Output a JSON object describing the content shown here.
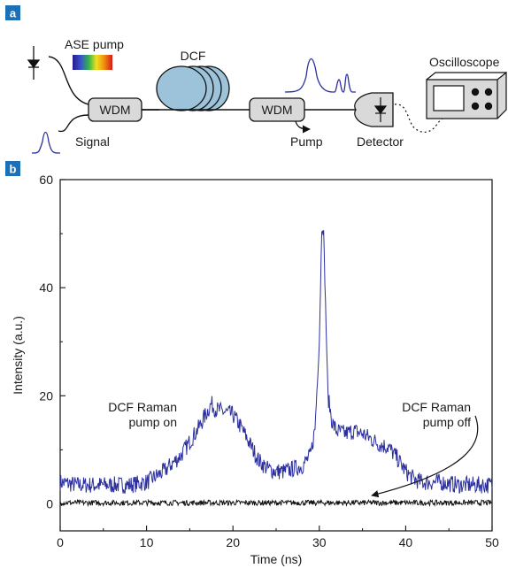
{
  "panel_a": {
    "badge": "a",
    "labels": {
      "ase_pump": "ASE pump",
      "dcf": "DCF",
      "wdm_in": "WDM",
      "wdm_out": "WDM",
      "signal": "Signal",
      "pump": "Pump",
      "detector": "Detector",
      "oscilloscope": "Oscilloscope"
    }
  },
  "panel_b": {
    "badge": "b",
    "annotations": {
      "pump_on_line1": "DCF Raman",
      "pump_on_line2": "pump on",
      "pump_off_line1": "DCF Raman",
      "pump_off_line2": "pump off"
    }
  },
  "colors": {
    "badge": "#1d6fb8",
    "trace_on": "#2b2f9e",
    "trace_off": "#111111",
    "component_fill": "#d9d9d9",
    "dcf_fill": "#9cc3d9"
  },
  "chart_data": {
    "type": "line",
    "xlabel": "Time (ns)",
    "ylabel": "Intensity (a.u.)",
    "xlim": [
      0,
      50
    ],
    "ylim": [
      -5,
      60
    ],
    "xticks": [
      0,
      10,
      20,
      30,
      40,
      50
    ],
    "yticks": [
      0,
      20,
      40,
      60
    ],
    "grid": false,
    "series": [
      {
        "x": [
          0,
          2,
          4,
          6,
          8,
          10,
          12,
          14,
          15,
          16,
          17,
          17.5,
          18,
          19,
          20,
          21,
          22,
          23,
          24,
          25,
          26,
          27,
          28,
          29,
          29.5,
          30,
          30.3,
          30.5,
          30.8,
          31,
          31.5,
          32,
          33,
          34,
          35,
          36,
          37,
          38,
          39,
          40,
          41,
          42,
          44,
          46,
          48,
          50
        ],
        "values": [
          4,
          3.5,
          3.5,
          3.5,
          3.5,
          4,
          6,
          9,
          11.5,
          14,
          17,
          18.5,
          17.5,
          17,
          16.5,
          14,
          11,
          8,
          6.5,
          6,
          6,
          6.5,
          7,
          9,
          14,
          30,
          52,
          50,
          32,
          20,
          15,
          13.5,
          13,
          13.5,
          13,
          12,
          11,
          10.5,
          8.5,
          6,
          4.5,
          4,
          4,
          3.5,
          3.5,
          3.5
        ]
      },
      {
        "x": [
          0,
          5,
          10,
          15,
          20,
          25,
          30,
          35,
          40,
          45,
          50
        ],
        "values": [
          0.2,
          0.2,
          0.2,
          0.2,
          0.2,
          0.2,
          0.2,
          0.2,
          0.2,
          0.2,
          0.2
        ]
      }
    ]
  }
}
